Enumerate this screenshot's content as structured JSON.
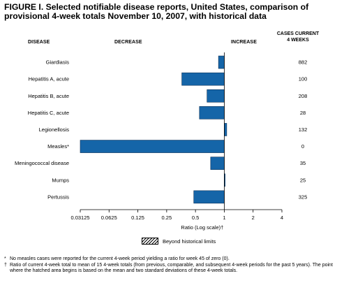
{
  "title": {
    "line1": "FIGURE I. Selected notifiable disease reports, United States, comparison of",
    "line2": "provisional 4-week totals November 10, 2007, with historical data"
  },
  "headers": {
    "disease": "DISEASE",
    "decrease": "DECREASE",
    "increase": "INCREASE",
    "cases_line1": "CASES CURRENT",
    "cases_line2": "4 WEEKS"
  },
  "chart_data": {
    "type": "bar",
    "orientation": "horizontal",
    "categories": [
      "Giardiasis",
      "Hepatitis A, acute",
      "Hepatitis B, acute",
      "Hepatitis C, acute",
      "Legionellosis",
      "Measles*",
      "Meningococcal disease",
      "Mumps",
      "Pertussis"
    ],
    "series": [
      {
        "values": [
          0.87,
          0.36,
          0.66,
          0.55,
          1.06,
          0.03125,
          0.72,
          1.0,
          0.48
        ]
      }
    ],
    "cases_current_4_weeks": [
      "882",
      "100",
      "208",
      "28",
      "132",
      "0",
      "35",
      "25",
      "325"
    ],
    "x_scale": "log2",
    "xlim": [
      0.03125,
      4
    ],
    "baseline": 1,
    "xticks": [
      "0.03125",
      "0.0625",
      "0.125",
      "0.25",
      "0.5",
      "1",
      "2",
      "4"
    ],
    "xtick_values": [
      0.03125,
      0.0625,
      0.125,
      0.25,
      0.5,
      1,
      2,
      4
    ],
    "xlabel": "Ratio (Log scale)†",
    "bar_color": "#1565a8",
    "grid": false
  },
  "legend": {
    "label": "Beyond historical limits"
  },
  "footnotes": [
    {
      "mark": "*",
      "text": "No measles cases were reported for the current 4-week period yielding a ratio for week 45 of zero (0)."
    },
    {
      "mark": "†",
      "text": "Ratio of current 4-week total to mean of 15 4-week totals (from previous, comparable, and subsequent 4-week periods for the past 5 years). The point where the hatched area begins is based on the mean and two standard deviations of these 4-week totals."
    }
  ]
}
